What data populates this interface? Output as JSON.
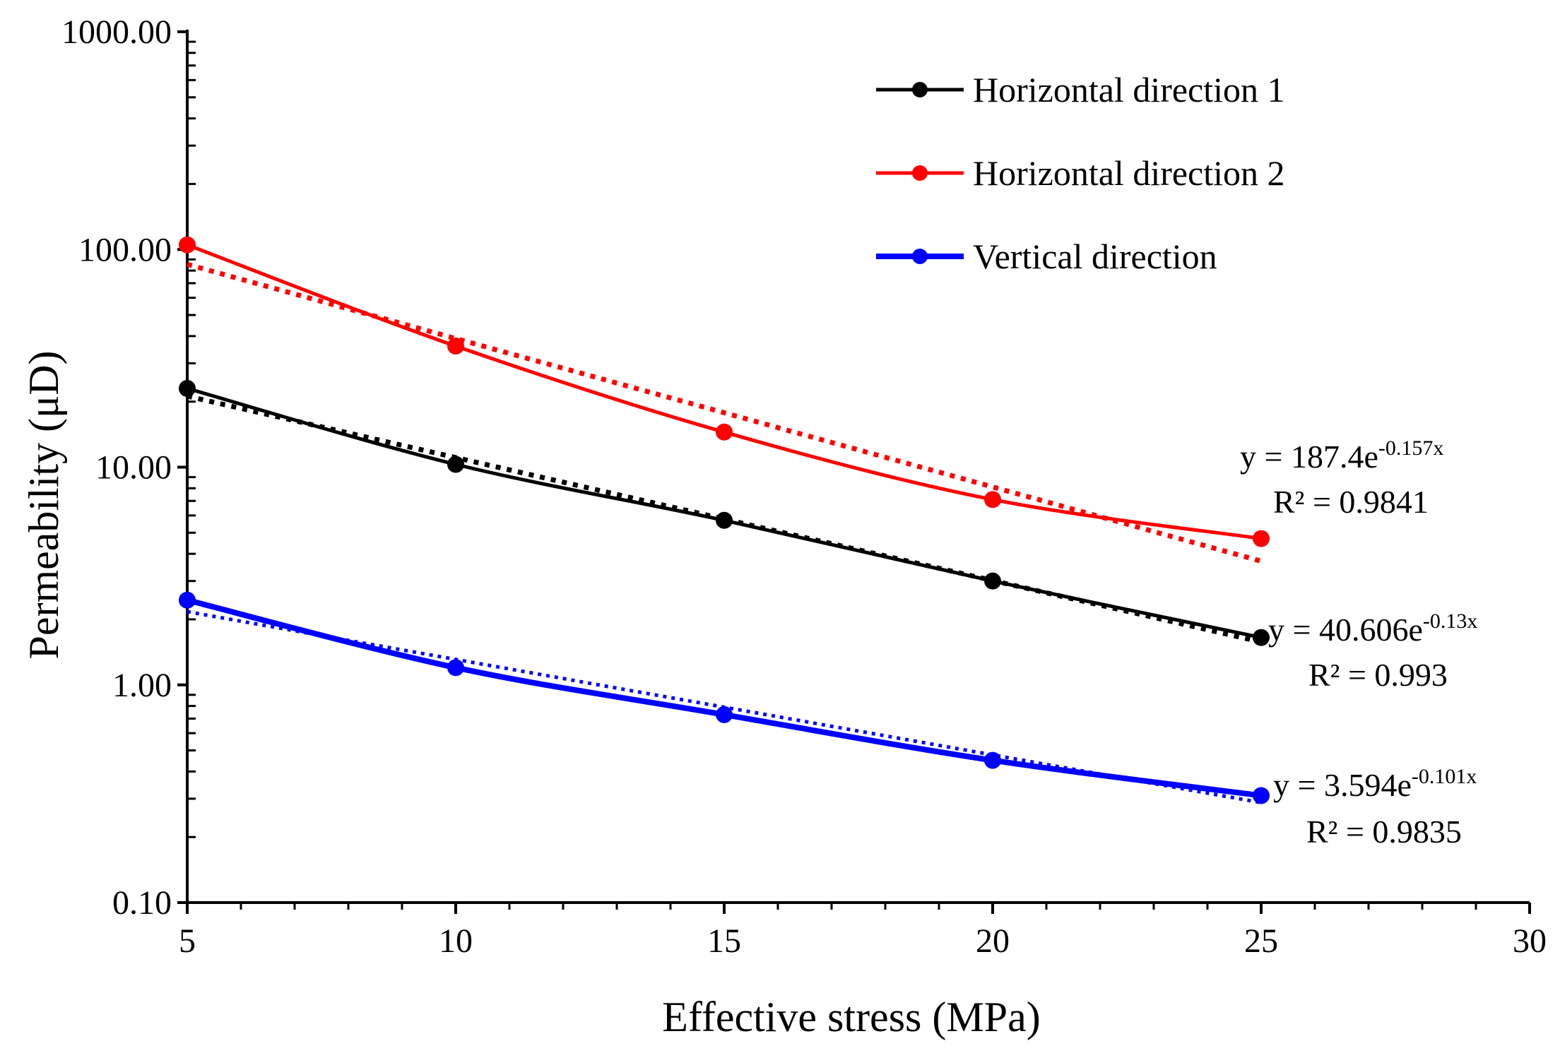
{
  "chart_data": {
    "type": "line",
    "title": "",
    "xlabel": "Effective stress (MPa)",
    "ylabel": "Permeability (μD)",
    "xlim": [
      5,
      30
    ],
    "ylim": [
      0.1,
      1000
    ],
    "yscale": "log",
    "x_ticks": [
      "5",
      "10",
      "15",
      "20",
      "25",
      "30"
    ],
    "y_ticks": [
      "0.10",
      "1.00",
      "10.00",
      "100.00",
      "1000.00"
    ],
    "x": [
      5,
      10,
      15,
      20,
      25
    ],
    "series": [
      {
        "name": "Horizontal direction 1",
        "color": "#000000",
        "values": [
          23.0,
          10.3,
          5.7,
          3.0,
          1.65
        ],
        "trend": {
          "a": 40.606,
          "b": -0.13,
          "equation": "y = 40.606e",
          "exponent": "-0.13x",
          "r2": "R² = 0.993"
        }
      },
      {
        "name": "Horizontal direction 2",
        "color": "#ff0000",
        "values": [
          105.0,
          36.0,
          14.5,
          7.1,
          4.7
        ],
        "trend": {
          "a": 187.4,
          "b": -0.157,
          "equation": "y = 187.4e",
          "exponent": "-0.157x",
          "r2": "R² = 0.9841"
        }
      },
      {
        "name": "Vertical direction",
        "color": "#0000ff",
        "values": [
          2.45,
          1.2,
          0.73,
          0.45,
          0.31
        ],
        "trend": {
          "a": 3.594,
          "b": -0.101,
          "equation": "y = 3.594e",
          "exponent": "-0.101x",
          "r2": "R² = 0.9835"
        }
      }
    ],
    "legend_position": "top-right",
    "grid": false
  }
}
